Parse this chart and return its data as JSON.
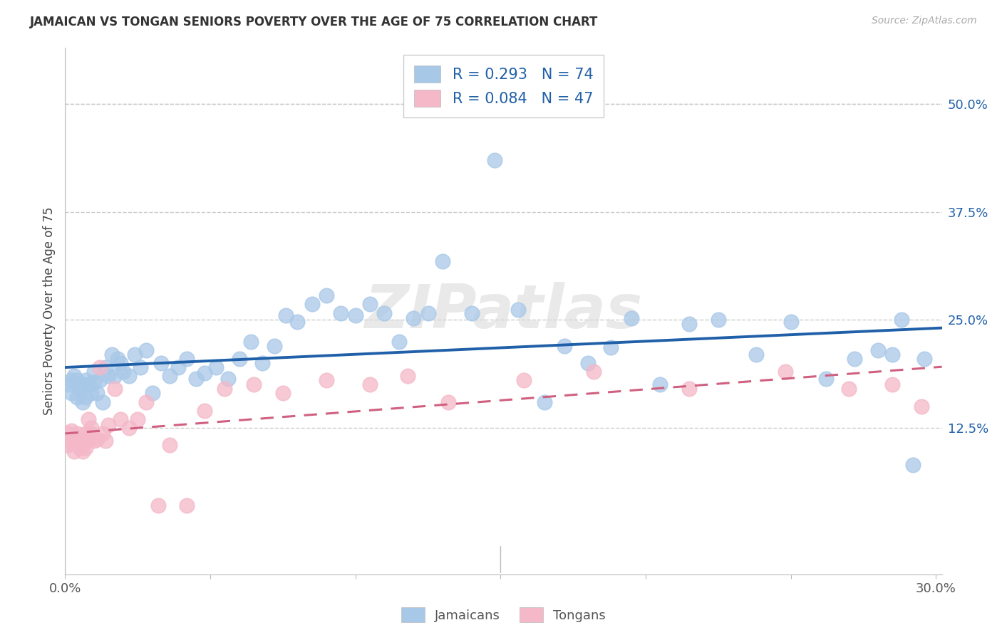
{
  "title": "JAMAICAN VS TONGAN SENIORS POVERTY OVER THE AGE OF 75 CORRELATION CHART",
  "source": "Source: ZipAtlas.com",
  "ylabel": "Seniors Poverty Over the Age of 75",
  "xlim": [
    0.0,
    0.302
  ],
  "ylim": [
    -0.045,
    0.565
  ],
  "yticks": [
    0.125,
    0.25,
    0.375,
    0.5
  ],
  "ytick_labels": [
    "12.5%",
    "25.0%",
    "37.5%",
    "50.0%"
  ],
  "xtick_show": [
    0.0,
    0.3
  ],
  "xtick_labels": [
    "0.0%",
    "30.0%"
  ],
  "jamaicans_R": "0.293",
  "jamaicans_N": "74",
  "tongans_R": "0.084",
  "tongans_N": "47",
  "blue_color": "#a8c8e8",
  "pink_color": "#f4b8c8",
  "blue_line_color": "#2060a8",
  "pink_line_color": "#d06080",
  "watermark": "ZIPatlas",
  "bg": "#ffffff",
  "grid_color": "#cccccc",
  "jamaicans_x": [
    0.001,
    0.002,
    0.002,
    0.003,
    0.004,
    0.004,
    0.005,
    0.006,
    0.006,
    0.007,
    0.007,
    0.008,
    0.009,
    0.01,
    0.01,
    0.011,
    0.012,
    0.013,
    0.014,
    0.015,
    0.016,
    0.017,
    0.018,
    0.019,
    0.02,
    0.022,
    0.024,
    0.026,
    0.028,
    0.03,
    0.033,
    0.036,
    0.039,
    0.042,
    0.045,
    0.048,
    0.052,
    0.056,
    0.06,
    0.064,
    0.068,
    0.072,
    0.076,
    0.08,
    0.085,
    0.09,
    0.095,
    0.1,
    0.105,
    0.11,
    0.115,
    0.12,
    0.125,
    0.13,
    0.14,
    0.148,
    0.156,
    0.165,
    0.172,
    0.18,
    0.188,
    0.195,
    0.205,
    0.215,
    0.225,
    0.238,
    0.25,
    0.262,
    0.272,
    0.28,
    0.285,
    0.288,
    0.292,
    0.296
  ],
  "jamaicans_y": [
    0.175,
    0.18,
    0.165,
    0.185,
    0.16,
    0.18,
    0.17,
    0.155,
    0.175,
    0.16,
    0.18,
    0.175,
    0.165,
    0.178,
    0.19,
    0.165,
    0.18,
    0.155,
    0.195,
    0.185,
    0.21,
    0.185,
    0.205,
    0.2,
    0.19,
    0.185,
    0.21,
    0.195,
    0.215,
    0.165,
    0.2,
    0.185,
    0.195,
    0.205,
    0.182,
    0.188,
    0.195,
    0.182,
    0.205,
    0.225,
    0.2,
    0.22,
    0.255,
    0.248,
    0.268,
    0.278,
    0.258,
    0.255,
    0.268,
    0.258,
    0.225,
    0.252,
    0.258,
    0.318,
    0.258,
    0.435,
    0.262,
    0.155,
    0.22,
    0.2,
    0.218,
    0.252,
    0.175,
    0.245,
    0.25,
    0.21,
    0.248,
    0.182,
    0.205,
    0.215,
    0.21,
    0.25,
    0.082,
    0.205
  ],
  "tongans_x": [
    0.001,
    0.001,
    0.002,
    0.002,
    0.003,
    0.003,
    0.004,
    0.004,
    0.005,
    0.005,
    0.006,
    0.006,
    0.007,
    0.007,
    0.008,
    0.008,
    0.009,
    0.009,
    0.01,
    0.011,
    0.012,
    0.013,
    0.014,
    0.015,
    0.017,
    0.019,
    0.022,
    0.025,
    0.028,
    0.032,
    0.036,
    0.042,
    0.048,
    0.055,
    0.065,
    0.075,
    0.09,
    0.105,
    0.118,
    0.132,
    0.158,
    0.182,
    0.215,
    0.248,
    0.27,
    0.285,
    0.295
  ],
  "tongans_y": [
    0.118,
    0.105,
    0.122,
    0.108,
    0.112,
    0.098,
    0.108,
    0.118,
    0.102,
    0.112,
    0.108,
    0.098,
    0.118,
    0.102,
    0.112,
    0.135,
    0.125,
    0.118,
    0.11,
    0.112,
    0.195,
    0.118,
    0.11,
    0.128,
    0.17,
    0.135,
    0.125,
    0.135,
    0.155,
    0.035,
    0.105,
    0.035,
    0.145,
    0.17,
    0.175,
    0.165,
    0.18,
    0.175,
    0.185,
    0.155,
    0.18,
    0.19,
    0.17,
    0.19,
    0.17,
    0.175,
    0.15
  ]
}
